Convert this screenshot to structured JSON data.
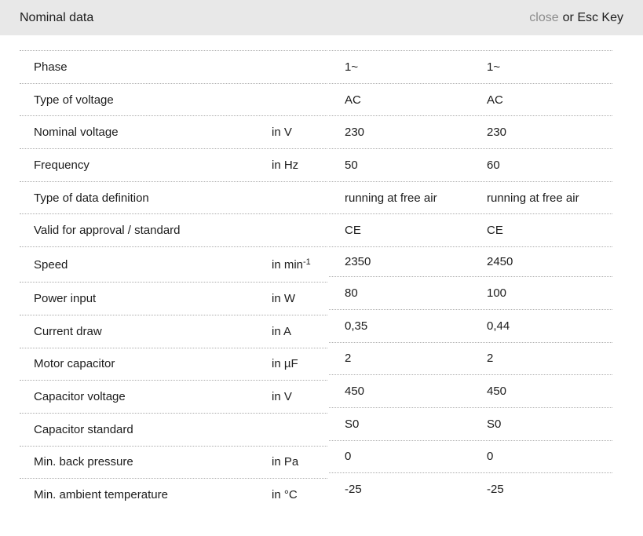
{
  "header": {
    "title": "Nominal data",
    "close_label": "close",
    "close_suffix": "or Esc Key"
  },
  "colors": {
    "header_bg": "#e8e8e8",
    "divider": "#adadad",
    "text": "#1c1c1c",
    "close_link": "#8c8c8c"
  },
  "table": {
    "rows": [
      {
        "label": "Phase",
        "unit": "",
        "unit_sup": "",
        "values": [
          "1~",
          "1~"
        ]
      },
      {
        "label": "Type of voltage",
        "unit": "",
        "unit_sup": "",
        "values": [
          "AC",
          "AC"
        ]
      },
      {
        "label": "Nominal voltage",
        "unit": "in V",
        "unit_sup": "",
        "values": [
          "230",
          "230"
        ]
      },
      {
        "label": "Frequency",
        "unit": "in Hz",
        "unit_sup": "",
        "values": [
          "50",
          "60"
        ]
      },
      {
        "label": "Type of data definition",
        "unit": "",
        "unit_sup": "",
        "values": [
          "running at free air",
          "running at free air"
        ]
      },
      {
        "label": "Valid for approval / standard",
        "unit": "",
        "unit_sup": "",
        "values": [
          "CE",
          "CE"
        ]
      },
      {
        "label": "Speed",
        "unit": "in min",
        "unit_sup": "-1",
        "values": [
          "2350",
          "2450"
        ]
      },
      {
        "label": "Power input",
        "unit": "in W",
        "unit_sup": "",
        "values": [
          "80",
          "100"
        ]
      },
      {
        "label": "Current draw",
        "unit": "in A",
        "unit_sup": "",
        "values": [
          "0,35",
          "0,44"
        ]
      },
      {
        "label": "Motor capacitor",
        "unit": "in µF",
        "unit_sup": "",
        "values": [
          "2",
          "2"
        ]
      },
      {
        "label": "Capacitor voltage",
        "unit": "in V",
        "unit_sup": "",
        "values": [
          "450",
          "450"
        ]
      },
      {
        "label": "Capacitor standard",
        "unit": "",
        "unit_sup": "",
        "values": [
          "S0",
          "S0"
        ]
      },
      {
        "label": "Min. back pressure",
        "unit": "in Pa",
        "unit_sup": "",
        "values": [
          "0",
          "0"
        ]
      },
      {
        "label": "Min. ambient temperature",
        "unit": "in °C",
        "unit_sup": "",
        "values": [
          "-25",
          "-25"
        ]
      }
    ]
  }
}
